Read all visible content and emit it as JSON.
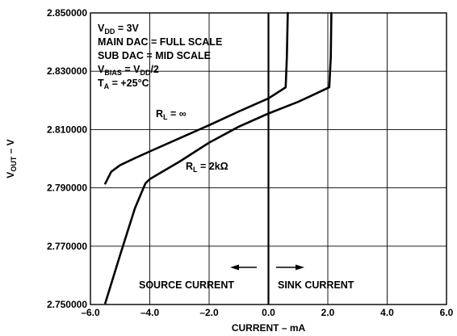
{
  "chart_data": {
    "type": "line",
    "title": "",
    "xlabel": "CURRENT – mA",
    "ylabel": {
      "main": "V",
      "sub": "OUT",
      "suffix": " – V"
    },
    "xlim": [
      -6.0,
      6.0
    ],
    "ylim": [
      2.75,
      2.85
    ],
    "x_ticks": [
      {
        "value": -6.0,
        "label": "–6.0"
      },
      {
        "value": -4.0,
        "label": "–4.0"
      },
      {
        "value": -2.0,
        "label": "–2.0"
      },
      {
        "value": 0.0,
        "label": "0.0"
      },
      {
        "value": 2.0,
        "label": "2.0"
      },
      {
        "value": 4.0,
        "label": "4.0"
      },
      {
        "value": 6.0,
        "label": "6.0"
      }
    ],
    "y_ticks": [
      {
        "value": 2.75,
        "label": "2.750000"
      },
      {
        "value": 2.77,
        "label": "2.770000"
      },
      {
        "value": 2.79,
        "label": "2.790000"
      },
      {
        "value": 2.81,
        "label": "2.810000"
      },
      {
        "value": 2.83,
        "label": "2.830000"
      },
      {
        "value": 2.85,
        "label": "2.850000"
      }
    ],
    "grid": true,
    "series": [
      {
        "name": "RL = ∞",
        "points": [
          [
            -5.5,
            2.7915
          ],
          [
            -5.3,
            2.7955
          ],
          [
            -5.0,
            2.7978
          ],
          [
            -4.5,
            2.8002
          ],
          [
            -4.0,
            2.8025
          ],
          [
            -3.0,
            2.807
          ],
          [
            -2.0,
            2.8115
          ],
          [
            -1.0,
            2.8162
          ],
          [
            0.0,
            2.8207
          ],
          [
            0.58,
            2.8245
          ],
          [
            0.62,
            2.835
          ],
          [
            0.65,
            2.85
          ]
        ]
      },
      {
        "name": "RL = 2kΩ",
        "points": [
          [
            -5.5,
            2.7505
          ],
          [
            -5.0,
            2.767
          ],
          [
            -4.5,
            2.783
          ],
          [
            -4.15,
            2.7915
          ],
          [
            -4.0,
            2.793
          ],
          [
            -3.0,
            2.799
          ],
          [
            -2.0,
            2.8055
          ],
          [
            -1.0,
            2.811
          ],
          [
            0.0,
            2.8155
          ],
          [
            1.0,
            2.8195
          ],
          [
            2.05,
            2.8245
          ],
          [
            2.1,
            2.835
          ],
          [
            2.12,
            2.85
          ]
        ]
      }
    ],
    "annotations": {
      "conditions": [
        {
          "main": "V",
          "sub": "DD",
          "rest": " = 3V"
        },
        {
          "main": "MAIN DAC = FULL SCALE",
          "sub": "",
          "rest": ""
        },
        {
          "main": "SUB DAC = MID SCALE",
          "sub": "",
          "rest": ""
        },
        {
          "main": "V",
          "sub": "BIAS",
          "rest": " = V",
          "sub2": "DD",
          "rest2": "/2"
        },
        {
          "main": "T",
          "sub": "A",
          "rest": " = +25°C"
        }
      ],
      "rl_inf": {
        "main": "R",
        "sub": "L",
        "rest": " = ∞"
      },
      "rl_2k": {
        "main": "R",
        "sub": "L",
        "rest": " = 2kΩ"
      },
      "source": "SOURCE CURRENT",
      "sink": "SINK CURRENT"
    }
  }
}
